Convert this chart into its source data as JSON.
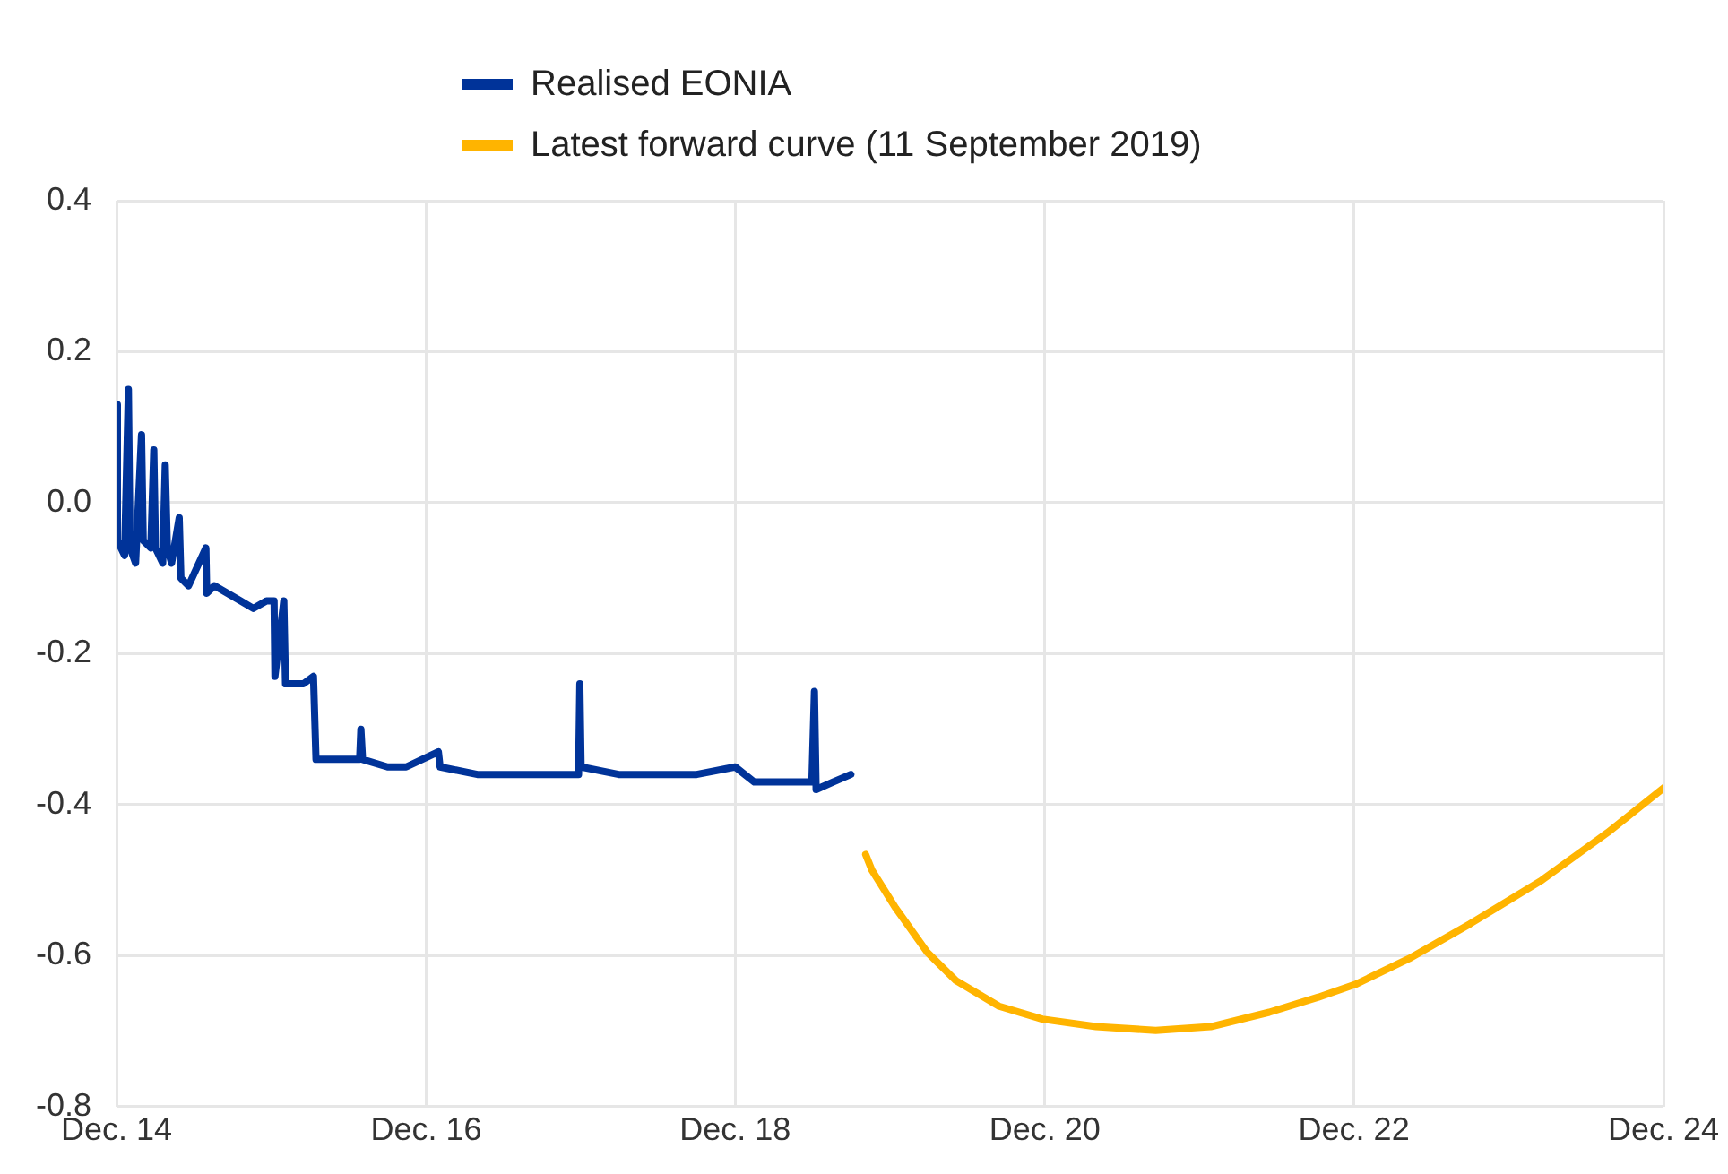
{
  "chart_data": {
    "type": "line",
    "xlim": [
      "2014-12-01",
      "2024-12-01"
    ],
    "xticks": [
      {
        "value": "2014-12",
        "label": "Dec. 14"
      },
      {
        "value": "2016-12",
        "label": "Dec. 16"
      },
      {
        "value": "2018-12",
        "label": "Dec. 18"
      },
      {
        "value": "2020-12",
        "label": "Dec. 20"
      },
      {
        "value": "2022-12",
        "label": "Dec. 22"
      },
      {
        "value": "2024-12",
        "label": "Dec. 24"
      }
    ],
    "ylim": [
      -0.8,
      0.4
    ],
    "yticks": [
      -0.8,
      -0.6,
      -0.4,
      -0.2,
      {
        "value": 0,
        "label": "0.0"
      },
      0.2,
      0.4
    ],
    "grid": true,
    "legend": "top",
    "marker": "none",
    "line_style": "solid",
    "series": [
      {
        "name": "Realised EONIA",
        "color": "#003399",
        "x": [
          "2014-12-01",
          "2014-12-03",
          "2014-12-20",
          "2014-12-29",
          "2015-01-02",
          "2015-01-15",
          "2015-01-29",
          "2015-02-02",
          "2015-02-20",
          "2015-02-27",
          "2015-03-03",
          "2015-03-20",
          "2015-03-26",
          "2015-03-31",
          "2015-04-10",
          "2015-04-28",
          "2015-05-02",
          "2015-05-20",
          "2015-06-30",
          "2015-07-02",
          "2015-07-20",
          "2015-08-20",
          "2015-09-20",
          "2015-10-20",
          "2015-11-20",
          "2015-12-08",
          "2015-12-10",
          "2015-12-31",
          "2016-01-04",
          "2016-02-15",
          "2016-03-10",
          "2016-03-16",
          "2016-04-20",
          "2016-06-27",
          "2016-06-30",
          "2016-07-04",
          "2016-09-01",
          "2016-10-15",
          "2016-12-30",
          "2017-01-03",
          "2017-04-01",
          "2017-06-30",
          "2017-09-15",
          "2017-11-26",
          "2017-11-29",
          "2017-12-02",
          "2018-03-01",
          "2018-06-30",
          "2018-09-01",
          "2018-12-01",
          "2019-01-15",
          "2019-03-01",
          "2019-05-31",
          "2019-06-06",
          "2019-06-10",
          "2019-07-20",
          "2019-08-31"
        ],
        "values": [
          0.13,
          -0.05,
          -0.07,
          0.15,
          -0.06,
          -0.08,
          0.09,
          -0.05,
          -0.06,
          0.07,
          -0.06,
          -0.08,
          0.05,
          -0.06,
          -0.08,
          -0.02,
          -0.1,
          -0.11,
          -0.06,
          -0.12,
          -0.11,
          -0.12,
          -0.13,
          -0.14,
          -0.13,
          -0.13,
          -0.23,
          -0.13,
          -0.24,
          -0.24,
          -0.23,
          -0.34,
          -0.34,
          -0.34,
          -0.3,
          -0.34,
          -0.35,
          -0.35,
          -0.33,
          -0.35,
          -0.36,
          -0.36,
          -0.36,
          -0.36,
          -0.24,
          -0.35,
          -0.36,
          -0.36,
          -0.36,
          -0.35,
          -0.37,
          -0.37,
          -0.37,
          -0.25,
          -0.38,
          -0.37,
          -0.36
        ]
      },
      {
        "name": "Latest forward curve (11 September 2019)",
        "color": "#ffb400",
        "x": [
          "2019-10-05",
          "2019-10-20",
          "2019-12-15",
          "2020-02-28",
          "2020-05-05",
          "2020-08-15",
          "2020-11-25",
          "2021-04-01",
          "2021-08-20",
          "2021-12-28",
          "2022-05-15",
          "2022-09-08",
          "2022-12-05",
          "2023-04-10",
          "2023-09-01",
          "2024-02-18",
          "2024-07-22",
          "2024-12-01"
        ],
        "values": [
          -0.466,
          -0.487,
          -0.537,
          -0.596,
          -0.633,
          -0.667,
          -0.684,
          -0.694,
          -0.699,
          -0.694,
          -0.675,
          -0.655,
          -0.638,
          -0.604,
          -0.558,
          -0.5,
          -0.437,
          -0.378
        ]
      }
    ]
  }
}
